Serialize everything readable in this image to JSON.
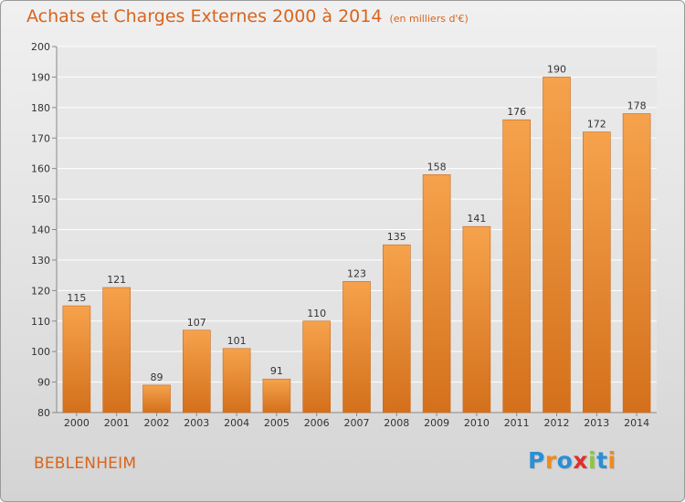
{
  "header": {
    "title": "Achats et Charges Externes 2000 à 2014",
    "unit": "(en milliers d'€)"
  },
  "footer": {
    "city": "BEBLENHEIM",
    "logo_letters": [
      {
        "char": "P",
        "color": "#2a8fd6"
      },
      {
        "char": "r",
        "color": "#f08a1c"
      },
      {
        "char": "o",
        "color": "#2a8fd6"
      },
      {
        "char": "x",
        "color": "#e0302a"
      },
      {
        "char": "i",
        "color": "#8cc63f"
      },
      {
        "char": "t",
        "color": "#2a8fd6"
      },
      {
        "char": "i",
        "color": "#f08a1c"
      }
    ]
  },
  "colors": {
    "bar_top": "#f6a24c",
    "bar_bottom": "#d4701c",
    "bar_border": "#c86a1c",
    "accent": "#d9641c",
    "grid": "#ffffff",
    "axis_text": "#333333"
  },
  "chart_data": {
    "type": "bar",
    "categories": [
      "2000",
      "2001",
      "2002",
      "2003",
      "2004",
      "2005",
      "2006",
      "2007",
      "2008",
      "2009",
      "2010",
      "2011",
      "2012",
      "2013",
      "2014"
    ],
    "values": [
      115,
      121,
      89,
      107,
      101,
      91,
      110,
      123,
      135,
      158,
      141,
      176,
      190,
      172,
      178
    ],
    "title": "Achats et Charges Externes 2000 à 2014",
    "ylim": [
      80,
      200
    ],
    "yticks": [
      80,
      90,
      100,
      110,
      120,
      130,
      140,
      150,
      160,
      170,
      180,
      190,
      200
    ],
    "grid": true,
    "data_labels": true
  }
}
